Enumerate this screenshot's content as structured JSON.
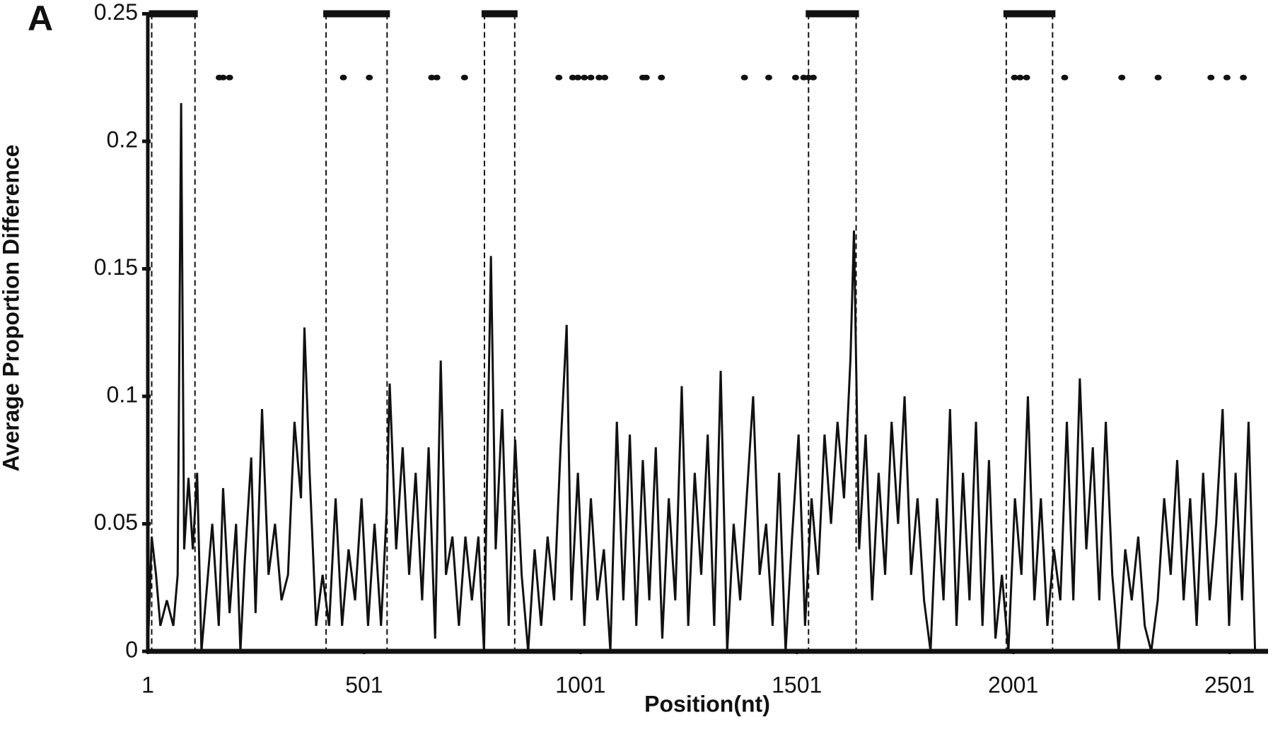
{
  "chart_data": {
    "type": "line",
    "panel_label": "A",
    "xlabel": "Position(nt)",
    "ylabel": "Average Proportion Difference",
    "xlim": [
      1,
      2590
    ],
    "ylim": [
      0,
      0.25
    ],
    "xticks": [
      1,
      501,
      1001,
      1501,
      2001,
      2501
    ],
    "yticks": [
      0,
      0.05,
      0.1,
      0.15,
      0.2,
      0.25
    ],
    "x": [
      1,
      10,
      20,
      30,
      45,
      60,
      70,
      78,
      85,
      95,
      105,
      115,
      125,
      135,
      150,
      165,
      175,
      190,
      205,
      215,
      225,
      240,
      250,
      265,
      280,
      295,
      310,
      325,
      340,
      355,
      363,
      375,
      390,
      405,
      420,
      435,
      450,
      465,
      480,
      495,
      510,
      525,
      540,
      553,
      560,
      575,
      590,
      605,
      620,
      635,
      650,
      665,
      678,
      690,
      705,
      720,
      735,
      750,
      765,
      778,
      794,
      805,
      820,
      835,
      850,
      865,
      880,
      895,
      910,
      925,
      940,
      955,
      969,
      980,
      995,
      1010,
      1025,
      1040,
      1055,
      1070,
      1085,
      1100,
      1115,
      1130,
      1145,
      1160,
      1175,
      1190,
      1205,
      1220,
      1235,
      1250,
      1265,
      1280,
      1295,
      1310,
      1325,
      1340,
      1355,
      1370,
      1385,
      1400,
      1415,
      1430,
      1445,
      1460,
      1475,
      1490,
      1505,
      1520,
      1535,
      1550,
      1565,
      1580,
      1595,
      1610,
      1625,
      1633,
      1645,
      1660,
      1675,
      1690,
      1705,
      1720,
      1735,
      1750,
      1765,
      1780,
      1795,
      1810,
      1825,
      1840,
      1855,
      1870,
      1885,
      1900,
      1915,
      1930,
      1945,
      1960,
      1975,
      1990,
      2005,
      2020,
      2035,
      2050,
      2065,
      2080,
      2095,
      2110,
      2125,
      2140,
      2155,
      2170,
      2185,
      2200,
      2215,
      2230,
      2245,
      2260,
      2275,
      2290,
      2305,
      2320,
      2335,
      2350,
      2365,
      2380,
      2395,
      2410,
      2425,
      2440,
      2455,
      2470,
      2485,
      2500,
      2515,
      2530,
      2545,
      2560,
      2575
    ],
    "series": [
      {
        "color": "#111111",
        "values": [
          0,
          0.045,
          0.03,
          0.01,
          0.02,
          0.01,
          0.03,
          0.215,
          0.04,
          0.068,
          0.04,
          0.07,
          0,
          0.02,
          0.05,
          0.01,
          0.064,
          0.015,
          0.05,
          0,
          0.035,
          0.076,
          0.015,
          0.095,
          0.03,
          0.05,
          0.02,
          0.03,
          0.09,
          0.06,
          0.127,
          0.07,
          0.01,
          0.03,
          0.01,
          0.06,
          0.01,
          0.04,
          0.02,
          0.06,
          0.01,
          0.05,
          0.01,
          0.055,
          0.105,
          0.04,
          0.08,
          0.03,
          0.07,
          0.02,
          0.08,
          0.005,
          0.114,
          0.03,
          0.045,
          0.01,
          0.045,
          0.02,
          0.045,
          0,
          0.155,
          0.04,
          0.095,
          0.01,
          0.083,
          0.03,
          0,
          0.04,
          0.01,
          0.045,
          0.02,
          0.08,
          0.128,
          0.02,
          0.07,
          0.01,
          0.06,
          0.02,
          0.04,
          0,
          0.09,
          0.02,
          0.085,
          0.01,
          0.075,
          0.02,
          0.08,
          0.005,
          0.06,
          0.02,
          0.104,
          0.01,
          0.07,
          0.03,
          0.085,
          0.01,
          0.11,
          0,
          0.05,
          0.02,
          0.06,
          0.1,
          0.03,
          0.05,
          0.01,
          0.07,
          0,
          0.045,
          0.085,
          0.01,
          0.06,
          0.03,
          0.085,
          0.05,
          0.09,
          0.06,
          0.115,
          0.165,
          0.04,
          0.085,
          0.02,
          0.07,
          0.03,
          0.09,
          0.05,
          0.1,
          0.03,
          0.06,
          0.02,
          0,
          0.06,
          0.02,
          0.095,
          0.01,
          0.07,
          0.02,
          0.09,
          0.01,
          0.075,
          0.005,
          0.03,
          0,
          0.06,
          0.03,
          0.1,
          0.02,
          0.06,
          0.01,
          0.04,
          0.02,
          0.09,
          0.02,
          0.107,
          0.04,
          0.08,
          0.02,
          0.09,
          0.03,
          0,
          0.04,
          0.02,
          0.045,
          0.01,
          0,
          0.02,
          0.06,
          0.03,
          0.075,
          0.02,
          0.06,
          0.01,
          0.07,
          0.02,
          0.05,
          0.095,
          0.01,
          0.07,
          0.02,
          0.09,
          0,
          0
        ]
      }
    ],
    "dots": {
      "color": "#111111",
      "x": [
        166,
        175,
        190,
        453,
        513,
        657,
        669,
        733,
        951,
        983,
        995,
        1010,
        1025,
        1044,
        1057,
        1145,
        1153,
        1188,
        1380,
        1436,
        1498,
        1517,
        1528,
        1539,
        2004,
        2017,
        2032,
        2120,
        2252,
        2336,
        2458,
        2495,
        2533
      ],
      "values": [
        0.225,
        0.225,
        0.225,
        0.225,
        0.225,
        0.225,
        0.225,
        0.225,
        0.225,
        0.225,
        0.225,
        0.225,
        0.225,
        0.225,
        0.225,
        0.225,
        0.225,
        0.225,
        0.225,
        0.225,
        0.225,
        0.225,
        0.225,
        0.225,
        0.225,
        0.225,
        0.225,
        0.225,
        0.225,
        0.225,
        0.225,
        0.225,
        0.225
      ]
    },
    "regions": {
      "level": 0.25,
      "spans": [
        [
          10,
          110
        ],
        [
          413,
          554
        ],
        [
          779,
          849
        ],
        [
          1528,
          1638
        ],
        [
          1985,
          2092
        ]
      ]
    }
  }
}
